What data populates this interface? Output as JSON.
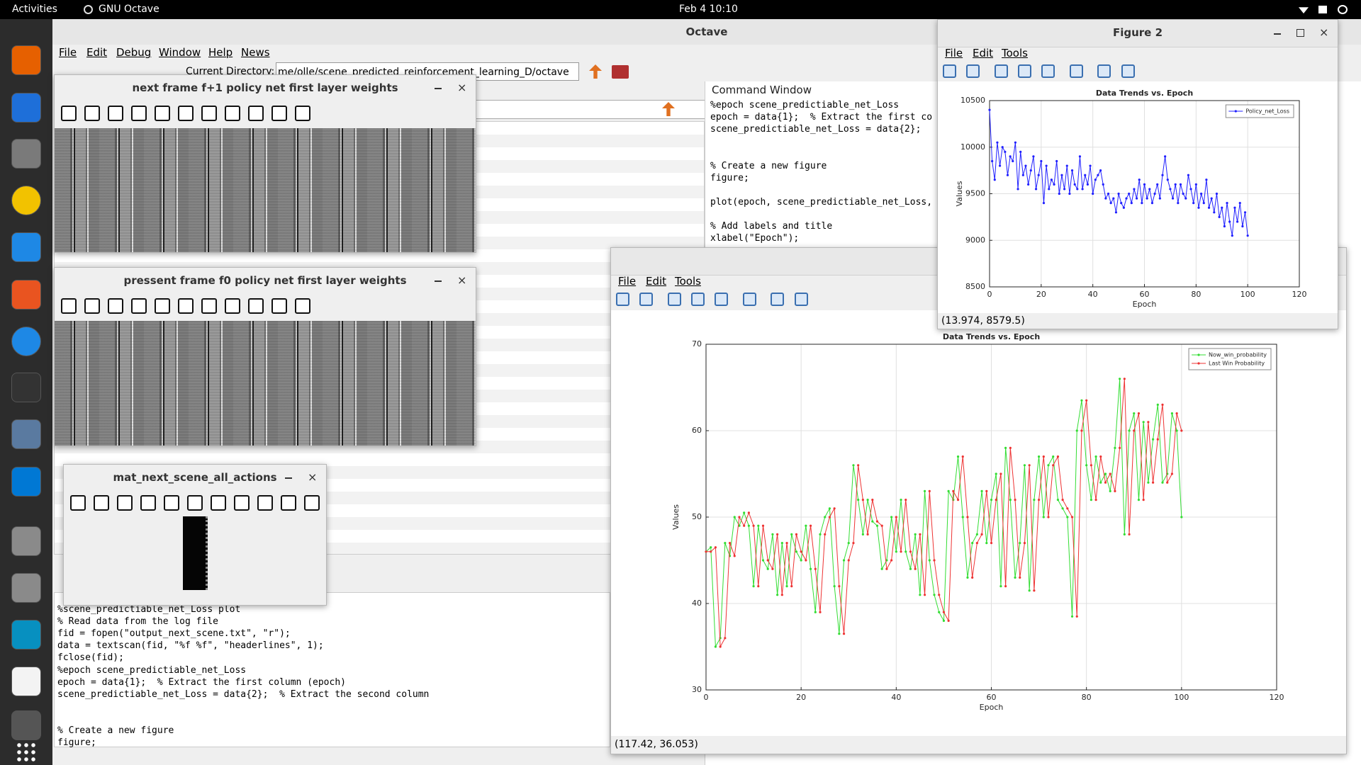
{
  "top_bar": {
    "activities": "Activities",
    "app_name": "GNU Octave",
    "clock": "Feb 4  10:10"
  },
  "main_window": {
    "title": "Octave",
    "menu": [
      "File",
      "Edit",
      "Debug",
      "Window",
      "Help",
      "News"
    ],
    "current_directory_label": "Current Directory:",
    "current_directory": "me/olle/scene_predicted_reinforcement_learning_D/octave",
    "command_window": {
      "title": "Command Window",
      "lines": [
        "%epoch scene_predictiable_net_Loss",
        "epoch = data{1};  % Extract the first co",
        "scene_predictiable_net_Loss = data{2};",
        "% Create a new figure",
        "figure;",
        "plot(epoch, scene_predictiable_net_Loss,",
        "% Add labels and title",
        "xlabel(\"Epoch\");"
      ]
    },
    "editor": {
      "lines": [
        "%scene_predictiable_net_Loss plot",
        "% Read data from the log file",
        "fid = fopen(\"output_next_scene.txt\", \"r\");",
        "data = textscan(fid, \"%f %f\", \"headerlines\", 1);",
        "fclose(fid);",
        "%epoch scene_predictiable_net_Loss",
        "epoch = data{1};  % Extract the first column (epoch)",
        "scene_predictiable_net_Loss = data{2};  % Extract the second column",
        "% Create a new figure",
        "figure;"
      ]
    }
  },
  "image_windows": [
    {
      "title": "next frame f+1 policy net first layer weights"
    },
    {
      "title": "pressent frame f0 policy net first layer weights"
    },
    {
      "title": "mat_next_scene_all_actions"
    }
  ],
  "figures": [
    {
      "title": "Figure 2",
      "menu": [
        "File",
        "Edit",
        "Tools"
      ],
      "status": "(13.974, 8579.5)",
      "chart_data": {
        "type": "line",
        "title": "Data Trends vs. Epoch",
        "xlabel": "Epoch",
        "ylabel": "Values",
        "grid": true,
        "legend": "northeast",
        "xlim": [
          0,
          120
        ],
        "ylim": [
          8500,
          10500
        ],
        "xticks": [
          0,
          20,
          40,
          60,
          80,
          100,
          120
        ],
        "yticks": [
          8500,
          9000,
          9500,
          10000,
          10500
        ],
        "x": [
          0,
          1,
          2,
          3,
          4,
          5,
          6,
          7,
          8,
          9,
          10,
          11,
          12,
          13,
          14,
          15,
          16,
          17,
          18,
          19,
          20,
          21,
          22,
          23,
          24,
          25,
          26,
          27,
          28,
          29,
          30,
          31,
          32,
          33,
          34,
          35,
          36,
          37,
          38,
          39,
          40,
          41,
          42,
          43,
          44,
          45,
          46,
          47,
          48,
          49,
          50,
          51,
          52,
          53,
          54,
          55,
          56,
          57,
          58,
          59,
          60,
          61,
          62,
          63,
          64,
          65,
          66,
          67,
          68,
          69,
          70,
          71,
          72,
          73,
          74,
          75,
          76,
          77,
          78,
          79,
          80,
          81,
          82,
          83,
          84,
          85,
          86,
          87,
          88,
          89,
          90,
          91,
          92,
          93,
          94,
          95,
          96,
          97,
          98,
          99,
          100
        ],
        "series": [
          {
            "name": "Policy_net_Loss",
            "color": "#2020ff",
            "values": [
              10400,
              9850,
              9650,
              10050,
              9800,
              10000,
              9950,
              9700,
              9900,
              9850,
              10050,
              9550,
              9950,
              9700,
              9800,
              9600,
              9750,
              9900,
              9550,
              9700,
              9850,
              9400,
              9800,
              9550,
              9650,
              9600,
              9850,
              9500,
              9700,
              9550,
              9800,
              9500,
              9750,
              9600,
              9550,
              9900,
              9550,
              9700,
              9600,
              9800,
              9500,
              9650,
              9700,
              9750,
              9600,
              9450,
              9500,
              9400,
              9450,
              9300,
              9500,
              9400,
              9350,
              9450,
              9500,
              9400,
              9550,
              9450,
              9650,
              9400,
              9600,
              9450,
              9550,
              9400,
              9500,
              9600,
              9450,
              9700,
              9900,
              9650,
              9550,
              9450,
              9600,
              9400,
              9600,
              9500,
              9450,
              9700,
              9550,
              9400,
              9600,
              9350,
              9500,
              9400,
              9650,
              9350,
              9450,
              9300,
              9500,
              9250,
              9350,
              9150,
              9400,
              9200,
              9050,
              9350,
              9200,
              9400,
              9150,
              9300,
              9050
            ]
          }
        ]
      }
    },
    {
      "menu": [
        "File",
        "Edit",
        "Tools"
      ],
      "status": "(117.42, 36.053)",
      "chart_data": {
        "type": "line",
        "title": "Data Trends vs. Epoch",
        "xlabel": "Epoch",
        "ylabel": "Values",
        "grid": true,
        "legend": "northeast",
        "xlim": [
          0,
          120
        ],
        "ylim": [
          30,
          70
        ],
        "xticks": [
          0,
          20,
          40,
          60,
          80,
          100,
          120
        ],
        "yticks": [
          30,
          40,
          50,
          60,
          70
        ],
        "x": [
          0,
          1,
          2,
          3,
          4,
          5,
          6,
          7,
          8,
          9,
          10,
          11,
          12,
          13,
          14,
          15,
          16,
          17,
          18,
          19,
          20,
          21,
          22,
          23,
          24,
          25,
          26,
          27,
          28,
          29,
          30,
          31,
          32,
          33,
          34,
          35,
          36,
          37,
          38,
          39,
          40,
          41,
          42,
          43,
          44,
          45,
          46,
          47,
          48,
          49,
          50,
          51,
          52,
          53,
          54,
          55,
          56,
          57,
          58,
          59,
          60,
          61,
          62,
          63,
          64,
          65,
          66,
          67,
          68,
          69,
          70,
          71,
          72,
          73,
          74,
          75,
          76,
          77,
          78,
          79,
          80,
          81,
          82,
          83,
          84,
          85,
          86,
          87,
          88,
          89,
          90,
          91,
          92,
          93,
          94,
          95,
          96,
          97,
          98,
          99,
          100
        ],
        "series": [
          {
            "name": "Now_win_probability",
            "color": "#33dd33",
            "values": [
              46,
              46.5,
              35,
              36,
              47,
              45.5,
              50,
              49,
              50.5,
              49,
              42,
              49,
              45,
              44,
              48,
              41,
              47,
              42,
              48,
              46,
              45,
              49,
              44,
              39,
              48,
              50,
              51,
              42,
              36.5,
              45,
              47,
              56,
              52,
              48,
              52,
              49.5,
              49,
              44,
              45,
              50,
              46,
              52,
              46,
              44,
              48,
              41,
              53,
              45,
              41,
              39,
              38,
              53,
              52,
              57,
              50,
              43,
              47,
              48,
              53,
              47,
              52,
              55,
              42,
              58,
              52,
              43,
              47,
              56,
              41.5,
              52,
              57,
              50,
              56,
              57,
              52,
              51,
              50,
              38.5,
              60,
              63.5,
              56,
              52,
              57,
              54,
              55,
              53,
              58,
              66,
              48,
              60,
              62,
              52,
              61,
              54,
              59,
              63,
              54,
              55,
              62,
              60,
              50
            ]
          },
          {
            "name": "Last Win Probability",
            "color": "#ee3333",
            "values": [
              46,
              46,
              46.5,
              35,
              36,
              47,
              45.5,
              50,
              49,
              50.5,
              49,
              42,
              49,
              45,
              44,
              48,
              41,
              47,
              42,
              48,
              46,
              45,
              49,
              44,
              39,
              48,
              50,
              51,
              42,
              36.5,
              45,
              47,
              56,
              52,
              48,
              52,
              49.5,
              49,
              44,
              45,
              50,
              46,
              52,
              46,
              44,
              48,
              41,
              53,
              45,
              41,
              39,
              38,
              53,
              52,
              57,
              50,
              43,
              47,
              48,
              53,
              47,
              52,
              55,
              42,
              58,
              52,
              43,
              47,
              56,
              41.5,
              52,
              57,
              50,
              56,
              57,
              52,
              51,
              50,
              38.5,
              60,
              63.5,
              56,
              52,
              57,
              54,
              55,
              53,
              58,
              66,
              48,
              60,
              62,
              52,
              61,
              54,
              59,
              63,
              54,
              55,
              62,
              60
            ]
          }
        ]
      }
    }
  ]
}
